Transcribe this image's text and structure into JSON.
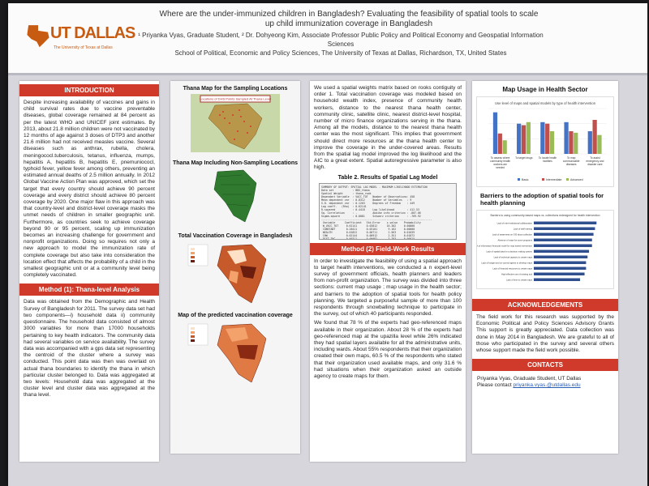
{
  "header": {
    "logo_text": "UT DALLAS",
    "logo_sub": "The University of Texas at Dallas",
    "title_line1": "Where are the under-immunized children in Bangladesh? Evaluating the feasibility of spatial tools to scale",
    "title_line2": "up child immunization coverage in Bangladesh",
    "authors_line1": "¹ Priyanka Vyas, Graduate Student, ² Dr. Dohyeong Kim, Associate Professor Public Policy and Political Economy and Geospatial Information Sciences",
    "authors_line2": "School of Political, Economic and Policy Sciences, The University of Texas at Dallas, Richardson, TX, United States"
  },
  "intro": {
    "heading": "INTRODUCTION",
    "text": "Despite increasing availability of vaccines and gains in child survival rates due to vaccine preventable diseases, global coverage remained at 84 percent as per the latest WHO and UNICEF joint estimates. By 2013, about 21.8 million children were not vaccinated by 12 months of age against 3 doses of DTP3 and another 21.6 million had not received measles vaccine. Several diseases such as anthrax, rubella, cholera, meningococl.tuberculosis, tetanus, influenza, mumps, hepatitis A, hepatitis B, hepatitis E, pnemuniococl, typhoid fever, yellow fever among others, preventing an estimated annual deaths of 2.5 million annually. In 2012 Global Vaccine Action Plan was approved, which set the target that every country should achieve 90 percent coverage and every district should achieve 80 percent coverage by 2020. One major flaw in this approach was that country-level and district-level coverage masks the unmet needs of children in smaller geographic unit. Furthermore, as countries seek to achieve coverage beyond 90 or 95 percent, scaling up immunization becomes an increasing challenge for government and nonprofit organizations. Doing so requires not only a new approach to model the immunization rate of complete coverage but also take into consideration the location effect that affects the probability of a child in the smallest geographic unit or at a community level being completely vaccinated."
  },
  "method1": {
    "heading": "Method (1): Thana-level Analysis",
    "text": "Data was obtained from the Demographic and Health Survey of Bangladesh for 2011. The survey data set had two components—i) household data ii) community questionnaire. The household data consisted of almost 3000 variables for more than 17000 households pertaining to key health indicators. The community data had several variables on service availability. The survey data was accompanied with a gps data set representing the centroid of the cluster where a survey was conducted. This point data was then was overlaid on actual thana boundaries to identify the thana in which particular cluster belonged to. Data was aggregated at two levels: Household data was aggregated at the cluster level and cluster data was aggregated at the thana level."
  },
  "figures": {
    "fig1_title": "Thana Map for the Sampling Locations",
    "fig1_caption": "Locations of DHS Points Sampled At Thana Level",
    "fig2_title": "Thana Map Including Non-Sampling Locations",
    "fig3_title": "Total Vaccination Coverage in Bangladesh",
    "fig4_title": "Map of the predicted vaccination coverage"
  },
  "col3": {
    "text1": "We used a spatial weights matrix based on rooks contiguity of order 1. Total vaccination coverage was modeled based on household wealth index, presence of community health workers, distance to the nearest thana health center, community clinic, satellite clinic, nearest district-level hospital, number of micro finance organizations serving in the thana. Among all the models, distance to the nearest thana health center was the most significant. This implies that government should direct more resources at the thana health center to improve the coverage in the under-covered areas. Results from the spatial lag model improved the log likelihood and the AIC to a great extent. Spatial autoregressive parameter is also high.",
    "table_title": "Table 2. Results of Spatial Lag Model",
    "method2_heading": "Method (2) Field-Work Results",
    "text2": "In order to investigate the feasibility of using a spatial approach to target health interventions, we conducted a n expert-level survey of government officials, health planners and leaders from non-profit organization. The survey was divided into three sections: current map usage ; map usage in the health sector; and barriers to the adoption of spatial tools for health policy planning. We targeted a purposeful sample of more than 100 respondents through snowballing technique to participate in the survey, out of which 40 participants responded.",
    "text3": "We found that 78 % of the experts had geo-referenced maps available in their organization. About 28 % of the experts had geo-referenced map at the upazilla level while 26% indicated they had spatial layers available for all the administrative units, including wards. About 55% respondents that their organization created their own maps, 60.5 % of the respondents who stated that their organization used available maps, and only 31.6 % had situations when their organization asked an outside agency to create maps for them."
  },
  "col4": {
    "map_usage_heading": "Map Usage in Health Sector",
    "barriers_heading": "Barriers to the adoption of spatial tools for health planning",
    "ack_heading": "ACKNOWLEDGEMENTS",
    "ack_text": "The field work for this research was supported by the Economic Political and Policy Sciences Advisory Grants This support is greatly appreciated. Data collection was done in May 2014 in Bangladesh. We are grateful to all of those who participated in the survey and several others whose support made the field work possible.",
    "contacts_heading": "CONTACTS",
    "contact_name": "Priyanka Vyas, Graduate Student, UT Dallas",
    "contact_prefix": "Please contact",
    "contact_email": "priyanka.vyas.@utdallas.edu"
  },
  "colors": {
    "accent_red": "#cf3a2a",
    "brand_orange": "#c75b12",
    "bar_blue": "#4472c4",
    "bar_red": "#c0504d",
    "bar_green": "#9bbb59"
  },
  "chart_data": [
    {
      "type": "bar",
      "title": "Use level of maps and spatial models by type of health intervention",
      "categories": [
        "To assess where community health workers are needed",
        "To target drugs",
        "To locate health facilities",
        "To map communicable diseases",
        "To assist emergency and disaster care"
      ],
      "series": [
        {
          "name": "Basic",
          "values": [
            55,
            40,
            42,
            42,
            30
          ]
        },
        {
          "name": "Intermediate",
          "values": [
            27,
            38,
            40,
            30,
            45
          ]
        },
        {
          "name": "Advanced",
          "values": [
            18,
            42,
            30,
            28,
            25
          ]
        }
      ],
      "ylim": [
        0,
        60
      ],
      "legend": "bottom"
    },
    {
      "type": "bar",
      "title": "Barriers to using community-based maps vs. collections redesigned for health intervention",
      "categories": [
        "Lack of inter-institutional collaboration",
        "Lack of staff training",
        "Lack of awareness on GIS about collection",
        "Absence of maps for some programs",
        "Lack of information/ financial model for map based intervention",
        "Lack of spatial data for a decision making system",
        "Lack of technical capacity to create maps",
        "Lack of budget and on-control agents to develop maps",
        "Lack of financial resources to create maps",
        "High effective use of existing tool",
        "Lack of time to create maps"
      ],
      "values": [
        4.2,
        4.1,
        4.0,
        3.9,
        3.9,
        3.7,
        3.6,
        3.5,
        3.5,
        3.4,
        3.1
      ],
      "orientation": "horizontal",
      "xlim": [
        0,
        5
      ]
    }
  ]
}
